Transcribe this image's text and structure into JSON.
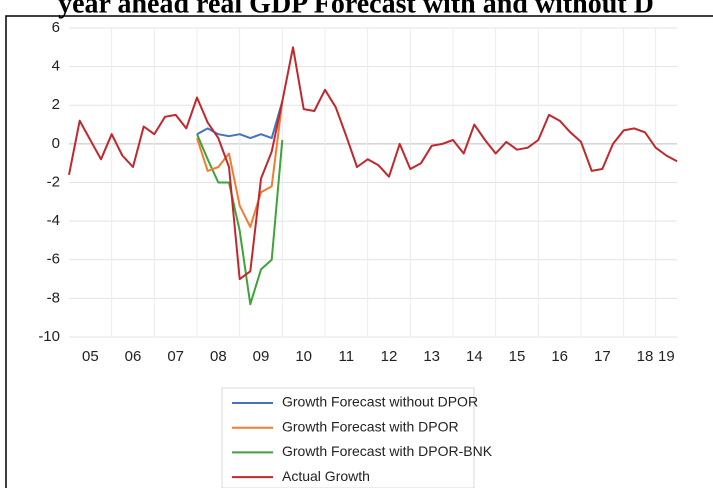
{
  "chart_data": {
    "type": "line",
    "title": "year ahead real GDP Forecast with and without D",
    "x": [
      2005.0,
      2005.25,
      2005.5,
      2005.75,
      2006.0,
      2006.25,
      2006.5,
      2006.75,
      2007.0,
      2007.25,
      2007.5,
      2007.75,
      2008.0,
      2008.25,
      2008.5,
      2008.75,
      2009.0,
      2009.25,
      2009.5,
      2009.75,
      2010.0,
      2010.25,
      2010.5,
      2010.75,
      2011.0,
      2011.25,
      2011.5,
      2011.75,
      2012.0,
      2012.25,
      2012.5,
      2012.75,
      2013.0,
      2013.25,
      2013.5,
      2013.75,
      2014.0,
      2014.25,
      2014.5,
      2014.75,
      2015.0,
      2015.25,
      2015.5,
      2015.75,
      2016.0,
      2016.25,
      2016.5,
      2016.75,
      2017.0,
      2017.25,
      2017.5,
      2017.75,
      2018.0,
      2018.25,
      2018.5,
      2018.75,
      2019.0,
      2019.25
    ],
    "series": [
      {
        "name": "Growth Forecast without DPOR",
        "color": "#4472c4",
        "values": [
          null,
          null,
          null,
          null,
          null,
          null,
          null,
          null,
          null,
          null,
          null,
          null,
          0.5,
          0.8,
          0.5,
          0.4,
          0.5,
          0.3,
          0.5,
          0.3,
          2.2,
          null,
          null,
          null,
          null,
          null,
          null,
          null,
          null,
          null,
          null,
          null,
          null,
          null,
          null,
          null,
          null,
          null,
          null,
          null,
          null,
          null,
          null,
          null,
          null,
          null,
          null,
          null,
          null,
          null,
          null,
          null,
          null,
          null,
          null,
          null,
          null,
          null
        ]
      },
      {
        "name": "Growth Forecast with DPOR",
        "color": "#ed7d31",
        "values": [
          null,
          null,
          null,
          null,
          null,
          null,
          null,
          null,
          null,
          null,
          null,
          null,
          0.3,
          -1.4,
          -1.2,
          -0.5,
          -3.2,
          -4.3,
          -2.5,
          -2.2,
          2.2,
          null,
          null,
          null,
          null,
          null,
          null,
          null,
          null,
          null,
          null,
          null,
          null,
          null,
          null,
          null,
          null,
          null,
          null,
          null,
          null,
          null,
          null,
          null,
          null,
          null,
          null,
          null,
          null,
          null,
          null,
          null,
          null,
          null,
          null,
          null,
          null,
          null
        ]
      },
      {
        "name": "Growth Forecast with DPOR-BNK",
        "color": "#3fa33a",
        "values": [
          null,
          null,
          null,
          null,
          null,
          null,
          null,
          null,
          null,
          null,
          null,
          null,
          0.5,
          -0.8,
          -2.0,
          -2.0,
          -4.5,
          -8.3,
          -6.5,
          -6.0,
          0.2,
          null,
          null,
          null,
          null,
          null,
          null,
          null,
          null,
          null,
          null,
          null,
          null,
          null,
          null,
          null,
          null,
          null,
          null,
          null,
          null,
          null,
          null,
          null,
          null,
          null,
          null,
          null,
          null,
          null,
          null,
          null,
          null,
          null,
          null,
          null,
          null,
          null
        ]
      },
      {
        "name": "Actual Growth",
        "color": "#c0282d",
        "values": [
          -1.6,
          1.2,
          0.2,
          -0.8,
          0.5,
          -0.6,
          -1.2,
          0.9,
          0.5,
          1.4,
          1.5,
          0.8,
          2.4,
          1.1,
          0.3,
          -1.2,
          -7.0,
          -6.6,
          -1.8,
          -0.4,
          2.2,
          5.0,
          1.8,
          1.7,
          2.8,
          1.9,
          0.4,
          -1.2,
          -0.8,
          -1.1,
          -1.7,
          0.0,
          -1.3,
          -1.0,
          -0.1,
          0.0,
          0.2,
          -0.5,
          1.0,
          0.2,
          -0.5,
          0.1,
          -0.3,
          -0.2,
          0.2,
          1.5,
          1.2,
          0.6,
          0.1,
          -1.4,
          -1.3,
          0.0,
          0.7,
          0.8,
          0.6,
          -0.2,
          -0.6,
          -0.9
        ]
      }
    ],
    "xlim": [
      2005,
      2019.25
    ],
    "xticks": [
      {
        "value": 2005.5,
        "label": "05"
      },
      {
        "value": 2006.5,
        "label": "06"
      },
      {
        "value": 2007.5,
        "label": "07"
      },
      {
        "value": 2008.5,
        "label": "08"
      },
      {
        "value": 2009.5,
        "label": "09"
      },
      {
        "value": 2010.5,
        "label": "10"
      },
      {
        "value": 2011.5,
        "label": "11"
      },
      {
        "value": 2012.5,
        "label": "12"
      },
      {
        "value": 2013.5,
        "label": "13"
      },
      {
        "value": 2014.5,
        "label": "14"
      },
      {
        "value": 2015.5,
        "label": "15"
      },
      {
        "value": 2016.5,
        "label": "16"
      },
      {
        "value": 2017.5,
        "label": "17"
      },
      {
        "value": 2018.5,
        "label": "18"
      },
      {
        "value": 2019.0,
        "label": "19"
      }
    ],
    "ylim": [
      -10,
      6
    ],
    "yticks": [
      -10,
      -8,
      -6,
      -4,
      -2,
      0,
      2,
      4,
      6
    ],
    "grid": true,
    "legend": "bottom"
  }
}
